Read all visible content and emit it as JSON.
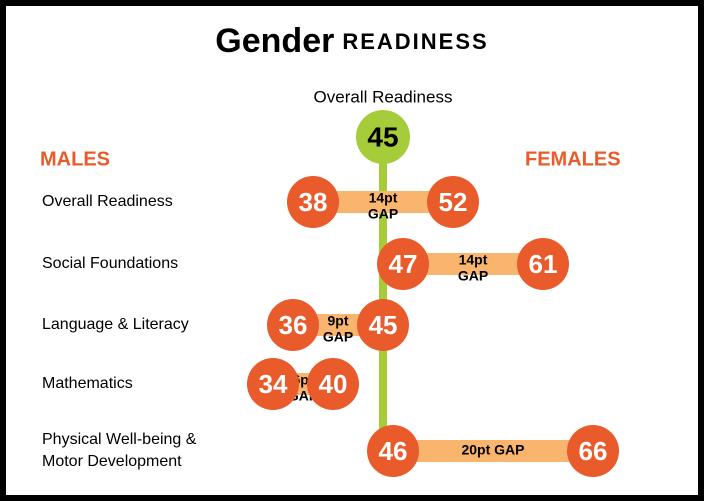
{
  "chart_data": {
    "type": "dumbbell",
    "title": "Gender",
    "title_suffix": "READINESS",
    "overall": {
      "label": "Overall Readiness",
      "value": 45,
      "color": "#a6cc39"
    },
    "categories": [
      [
        "Overall Readiness"
      ],
      [
        "Social Foundations"
      ],
      [
        "Language & Literacy"
      ],
      [
        "Mathematics"
      ],
      [
        "Physical Well-being &",
        "Motor Development"
      ]
    ],
    "series": [
      {
        "name": "MALES",
        "color": "#ea5b2c",
        "values": [
          38,
          47,
          36,
          34,
          46
        ]
      },
      {
        "name": "FEMALES",
        "color": "#ea5b2c",
        "values": [
          52,
          61,
          45,
          40,
          66
        ]
      }
    ],
    "gap_labels": [
      [
        "14pt",
        "GAP"
      ],
      [
        "14pt",
        "GAP"
      ],
      [
        "9pt",
        "GAP"
      ],
      [
        "6pt",
        "GAP"
      ],
      [
        "20pt GAP"
      ]
    ],
    "bar_color": "#f9b46e",
    "line_color": "#a6cc39",
    "heading_color": "#ea5b2c"
  }
}
